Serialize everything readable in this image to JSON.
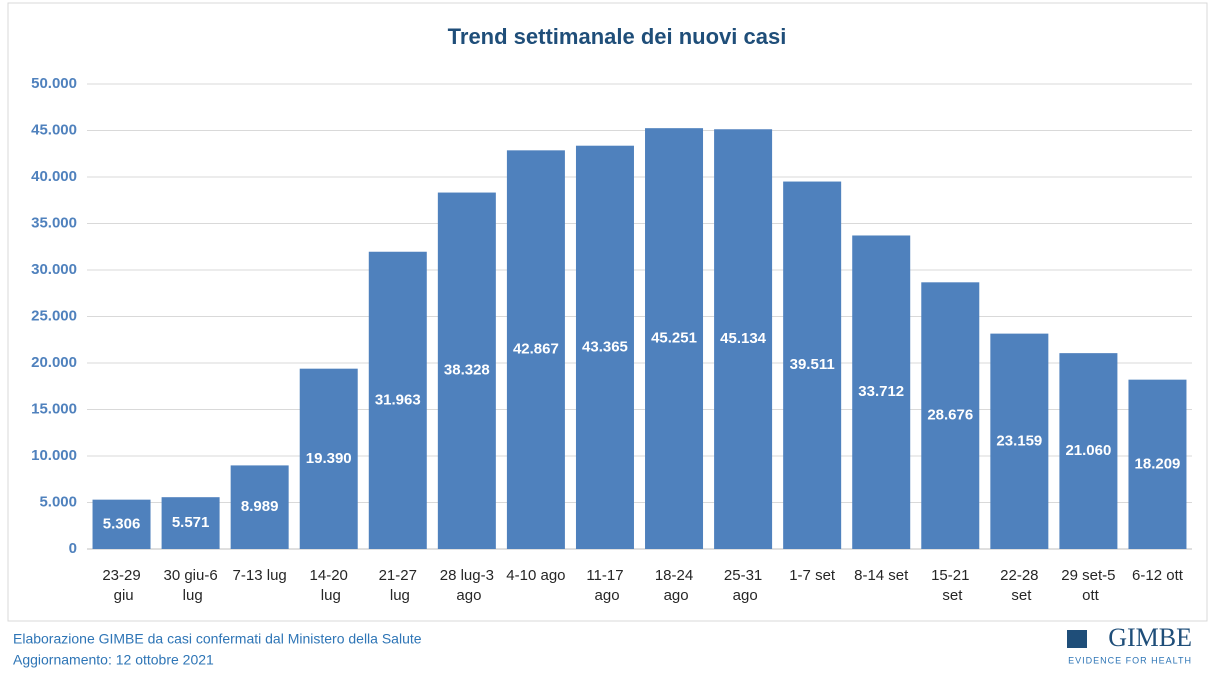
{
  "chart_data": {
    "type": "bar",
    "title": "Trend settimanale dei nuovi casi",
    "categories": [
      "23-29 giu",
      "30 giu-6 lug",
      "7-13 lug",
      "14-20 lug",
      "21-27 lug",
      "28 lug-3 ago",
      "4-10 ago",
      "11-17 ago",
      "18-24 ago",
      "25-31 ago",
      "1-7 set",
      "8-14 set",
      "15-21 set",
      "22-28 set",
      "29 set-5 ott",
      "6-12 ott"
    ],
    "values": [
      5306,
      5571,
      8989,
      19390,
      31963,
      38328,
      42867,
      43365,
      45251,
      45134,
      39511,
      33712,
      28676,
      23159,
      21060,
      18209
    ],
    "value_labels": [
      "5.306",
      "5.571",
      "8.989",
      "19.390",
      "31.963",
      "38.328",
      "42.867",
      "43.365",
      "45.251",
      "45.134",
      "39.511",
      "33.712",
      "28.676",
      "23.159",
      "21.060",
      "18.209"
    ],
    "color": "#4f81bd",
    "ylim": [
      0,
      50000
    ],
    "yticks": [
      0,
      {
        "value": 5000,
        "label": "5.000"
      },
      {
        "value": 10000,
        "label": "10.000"
      },
      {
        "value": 15000,
        "label": "15.000"
      },
      {
        "value": 20000,
        "label": "20.000"
      },
      {
        "value": 25000,
        "label": "25.000"
      },
      {
        "value": 30000,
        "label": "30.000"
      },
      {
        "value": 35000,
        "label": "35.000"
      },
      {
        "value": 40000,
        "label": "40.000"
      },
      {
        "value": 45000,
        "label": "45.000"
      },
      {
        "value": 50000,
        "label": "50.000"
      }
    ],
    "grid": true
  },
  "footer": {
    "source": "Elaborazione GIMBE da casi confermati dal Ministero della Salute",
    "updated": "Aggiornamento: 12 ottobre 2021",
    "logo": "GIMBE",
    "logo_tagline": "EVIDENCE FOR HEALTH"
  }
}
